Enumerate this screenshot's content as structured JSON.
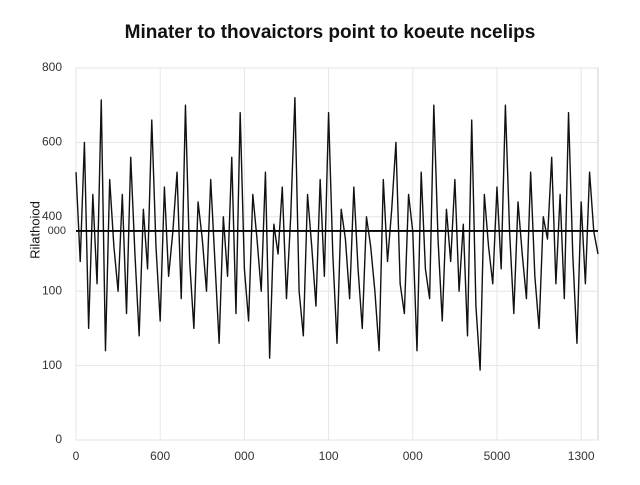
{
  "chart_data": {
    "type": "line",
    "title": "Minater to thovaictors point to koeute ncelips",
    "y_label": "Rilathoiod",
    "xlim": [
      0,
      620
    ],
    "ylim": [
      0,
      500
    ],
    "xticks": [
      0,
      {
        "value": 100,
        "label": "600"
      },
      {
        "value": 200,
        "label": "000"
      },
      {
        "value": 300,
        "label": "100"
      },
      {
        "value": 400,
        "label": "000"
      },
      {
        "value": 500,
        "label": "5000"
      },
      {
        "value": 600,
        "label": "1300"
      }
    ],
    "yticks": [
      0,
      100,
      {
        "value": 200,
        "label": "100"
      },
      {
        "value": 300,
        "label": "400"
      },
      {
        "value": 400,
        "label": "600"
      },
      {
        "value": 500,
        "label": "800"
      }
    ],
    "grid": true,
    "ref_line": {
      "value": 281,
      "label": "000",
      "color": "#000000"
    },
    "x": [
      0,
      5,
      10,
      15,
      20,
      25,
      30,
      35,
      40,
      45,
      50,
      55,
      60,
      65,
      70,
      75,
      80,
      85,
      90,
      95,
      100,
      105,
      110,
      115,
      120,
      125,
      130,
      135,
      140,
      145,
      150,
      155,
      160,
      165,
      170,
      175,
      180,
      185,
      190,
      195,
      200,
      205,
      210,
      215,
      220,
      225,
      230,
      235,
      240,
      245,
      250,
      255,
      260,
      265,
      270,
      275,
      280,
      285,
      290,
      295,
      300,
      305,
      310,
      315,
      320,
      325,
      330,
      335,
      340,
      345,
      350,
      355,
      360,
      365,
      370,
      375,
      380,
      385,
      390,
      395,
      400,
      405,
      410,
      415,
      420,
      425,
      430,
      435,
      440,
      445,
      450,
      455,
      460,
      465,
      470,
      475,
      480,
      485,
      490,
      495,
      500,
      505,
      510,
      515,
      520,
      525,
      530,
      535,
      540,
      545,
      550,
      555,
      560,
      565,
      570,
      575,
      580,
      585,
      590,
      595,
      600,
      605,
      610,
      615,
      620
    ],
    "series": [
      {
        "name": "series",
        "color": "#111111",
        "values": [
          360,
          240,
          400,
          150,
          330,
          210,
          457,
          120,
          350,
          260,
          200,
          330,
          170,
          380,
          250,
          140,
          310,
          230,
          430,
          260,
          160,
          340,
          220,
          280,
          360,
          190,
          450,
          240,
          150,
          320,
          270,
          200,
          350,
          240,
          130,
          300,
          220,
          380,
          170,
          440,
          230,
          160,
          330,
          270,
          200,
          360,
          110,
          290,
          250,
          340,
          190,
          300,
          460,
          200,
          140,
          330,
          260,
          180,
          350,
          220,
          440,
          250,
          130,
          310,
          270,
          190,
          340,
          230,
          150,
          300,
          260,
          200,
          120,
          350,
          240,
          310,
          400,
          210,
          170,
          330,
          280,
          120,
          360,
          230,
          190,
          450,
          270,
          160,
          310,
          240,
          350,
          200,
          290,
          140,
          430,
          180,
          94,
          330,
          260,
          210,
          340,
          230,
          450,
          280,
          170,
          320,
          250,
          190,
          360,
          220,
          150,
          300,
          270,
          380,
          210,
          330,
          190,
          440,
          250,
          130,
          320,
          210,
          360,
          280,
          250
        ]
      }
    ]
  }
}
